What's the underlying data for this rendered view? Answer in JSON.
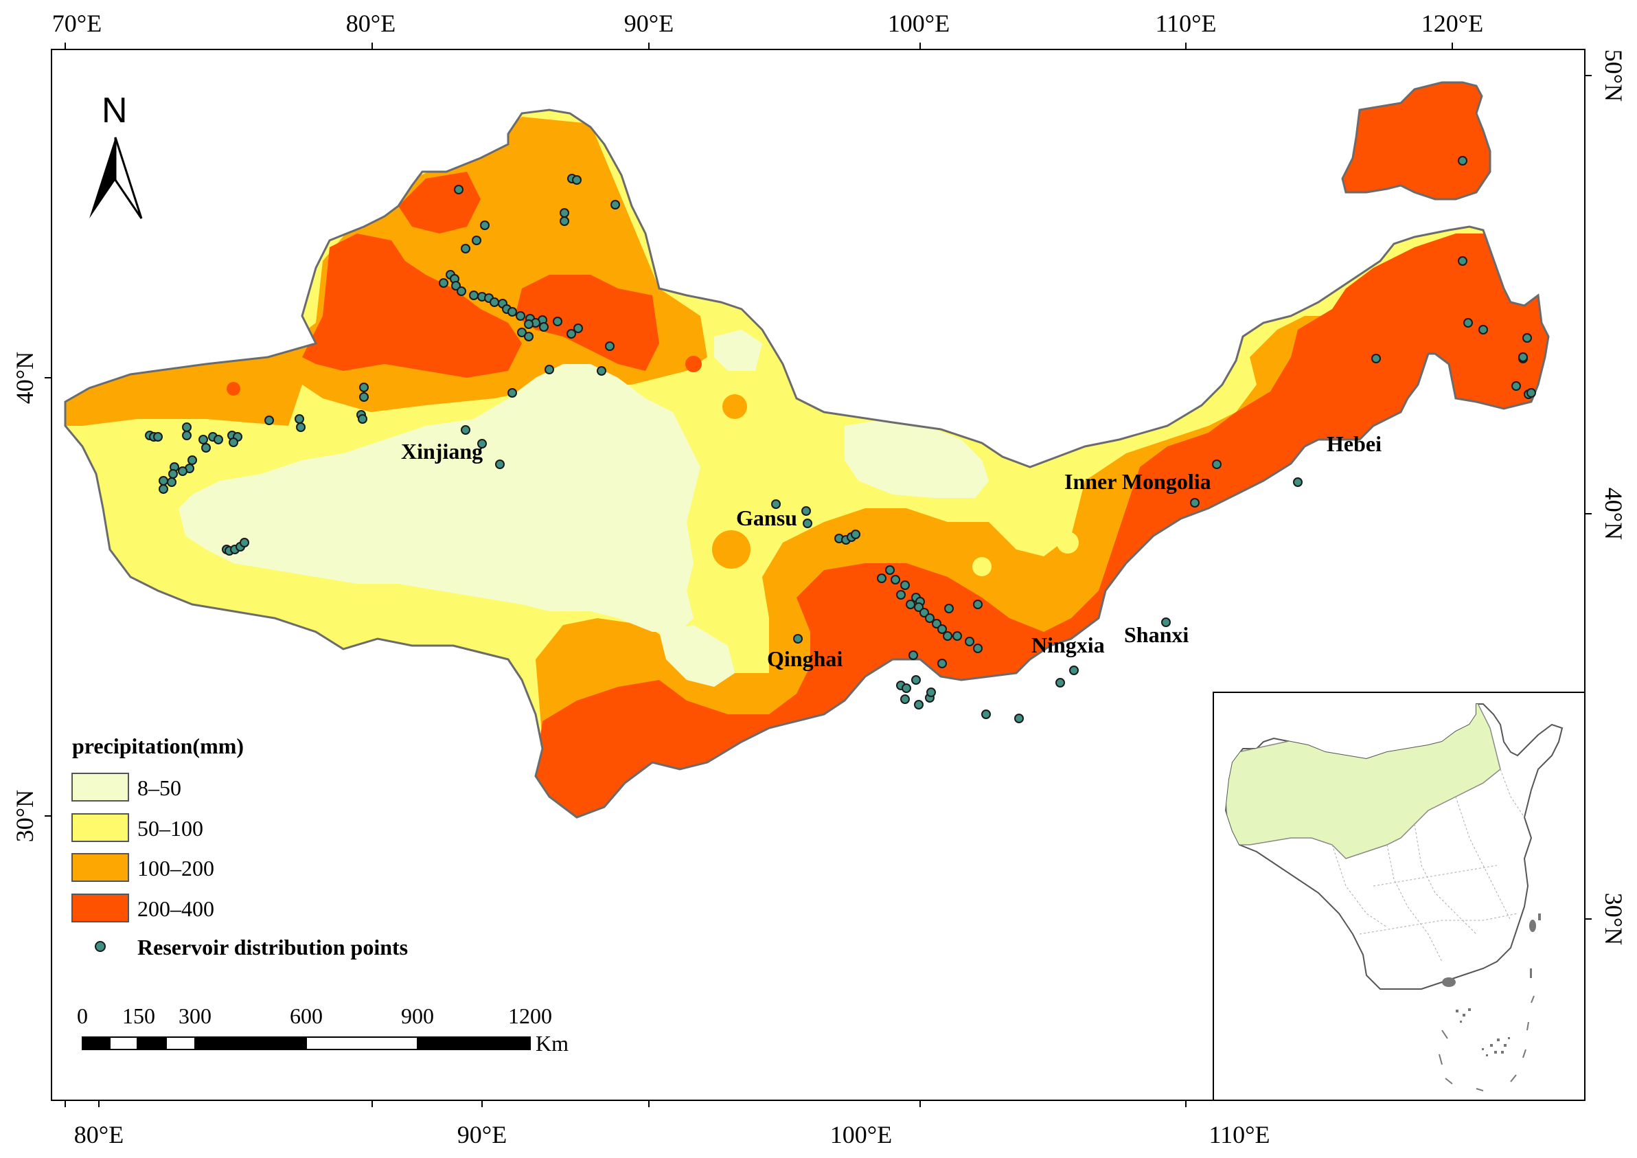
{
  "map": {
    "top_axis_labels": [
      "70°E",
      "80°E",
      "90°E",
      "100°E",
      "110°E",
      "120°E"
    ],
    "bottom_axis_labels": [
      "80°E",
      "90°E",
      "100°E",
      "110°E"
    ],
    "left_axis_labels": [
      "40°N",
      "30°N"
    ],
    "right_axis_labels": [
      "50°N",
      "40°N",
      "30°N"
    ],
    "north_label": "N",
    "province_labels": [
      "Xinjiang",
      "Gansu",
      "Qinghai",
      "Inner Mongolia",
      "Hebei",
      "Ningxia",
      "Shanxi"
    ]
  },
  "legend": {
    "title": "precipitation(mm)",
    "classes": [
      {
        "label": "8–50",
        "color": "#f5fccc"
      },
      {
        "label": "50–100",
        "color": "#fdfb6b"
      },
      {
        "label": "100–200",
        "color": "#fda802"
      },
      {
        "label": "200–400",
        "color": "#fe5200"
      }
    ],
    "points_label": "Reservoir distribution points",
    "point_color": "#3f8f82"
  },
  "scale_bar": {
    "labels": [
      "0",
      "150",
      "300",
      "600",
      "900",
      "1200"
    ],
    "unit": "Km"
  }
}
